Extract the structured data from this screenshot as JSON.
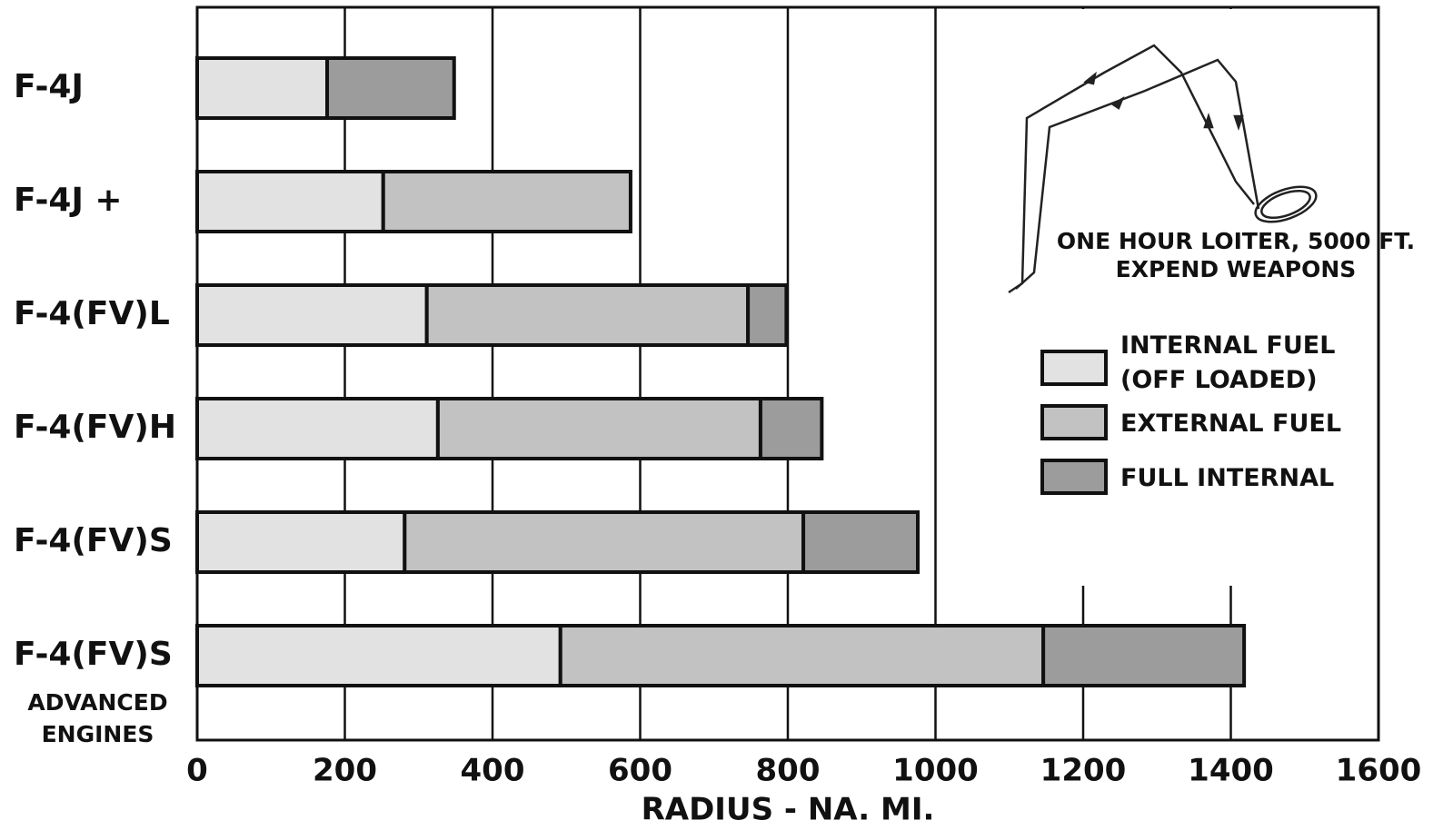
{
  "chart_data": {
    "type": "stacked_barh",
    "categories": [
      "F-4J",
      "F-4J +",
      "F-4(FV)L",
      "F-4(FV)H",
      "F-4(FV)S",
      "F-4(FV)S"
    ],
    "category_note": "ADVANCED\nENGINES",
    "x_label": "RADIUS - NA. MI.",
    "annotation": "ONE HOUR LOITER, 5000 FT.\nEXPEND WEAPONS",
    "series": [
      {
        "name": "INTERNAL FUEL\n(OFF LOADED)",
        "color": "#e2e2e2",
        "values": [
          176,
          252,
          311,
          326,
          281,
          492
        ]
      },
      {
        "name": "EXTERNAL FUEL",
        "color": "#c2c2c2",
        "values": [
          null,
          335,
          435,
          437,
          540,
          654
        ]
      },
      {
        "name": "FULL INTERNAL",
        "color": "#9c9c9c",
        "values": [
          172,
          null,
          52,
          83,
          155,
          272
        ]
      }
    ],
    "xlim": [
      0,
      1600
    ],
    "xticks": [
      0,
      200,
      400,
      600,
      800,
      1000,
      1200,
      1400,
      1600
    ],
    "grid": true
  }
}
